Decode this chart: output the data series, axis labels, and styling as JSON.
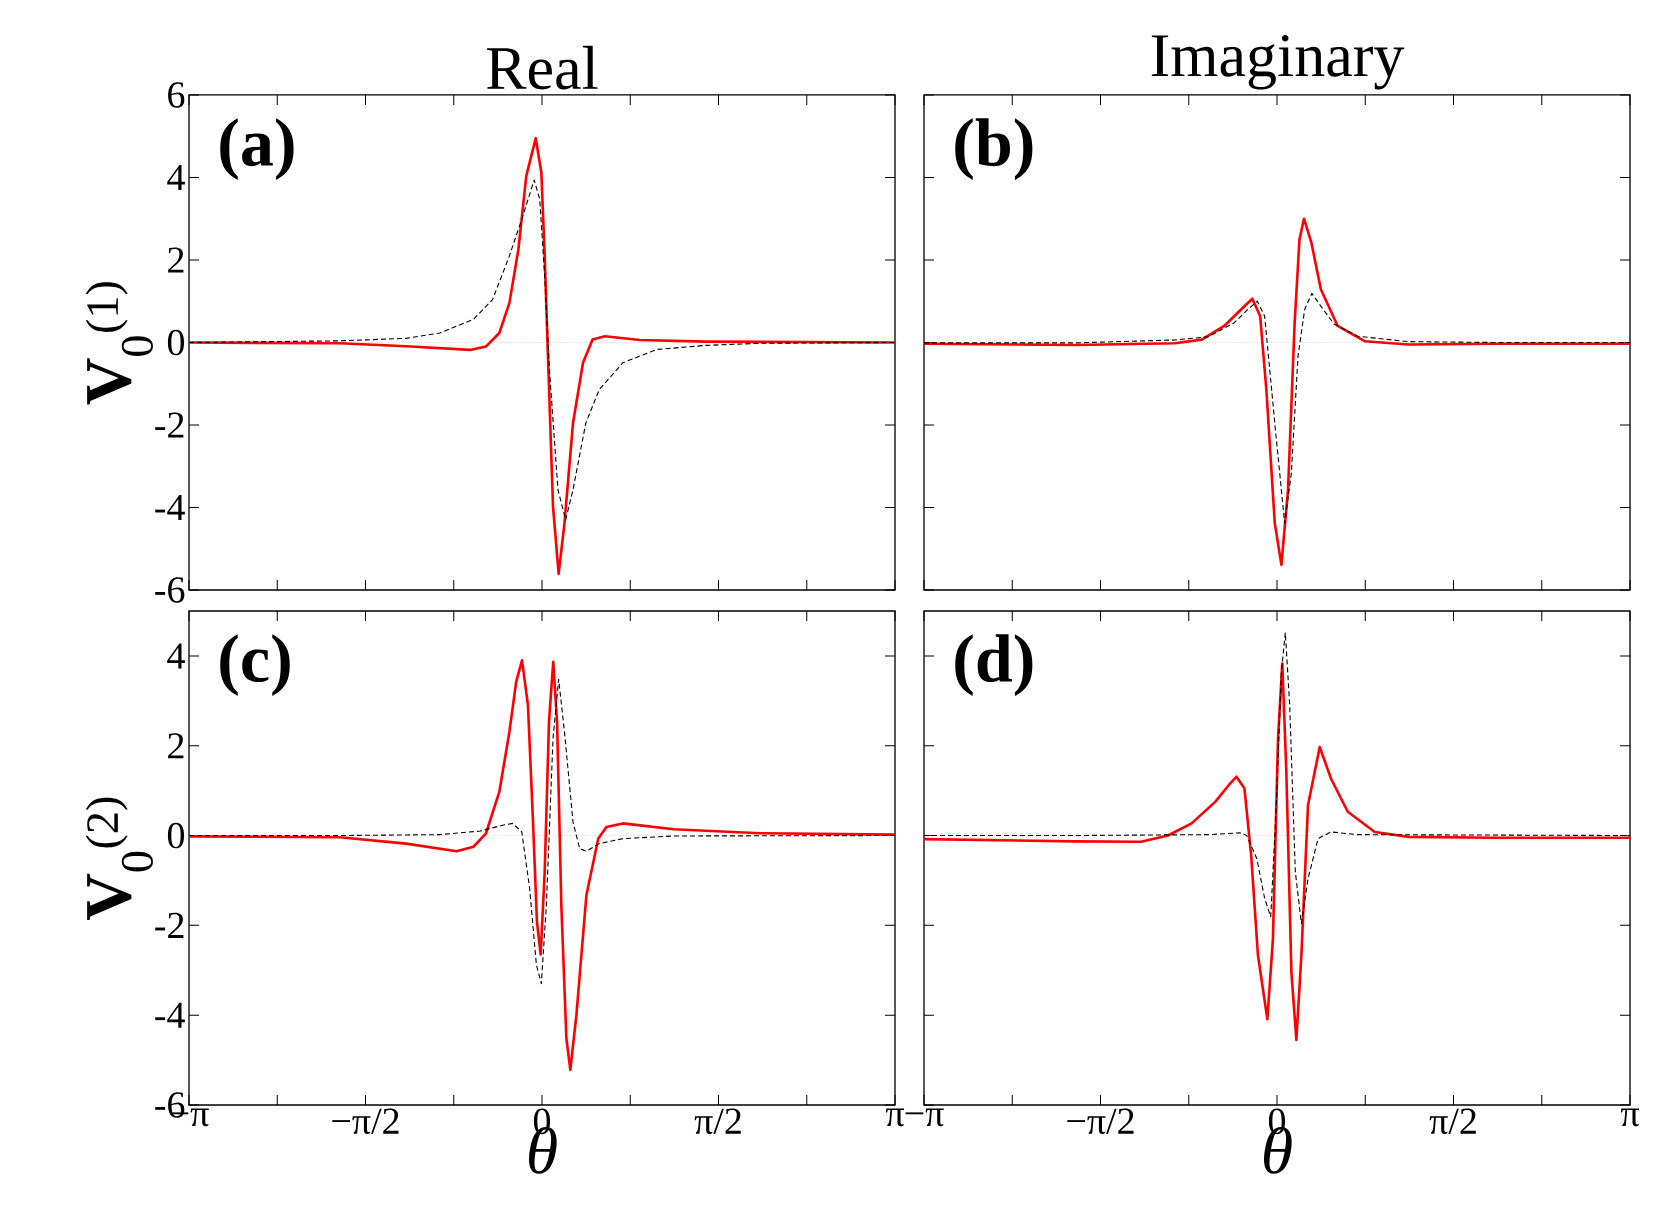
{
  "chart_data": [
    {
      "type": "line",
      "title": "Real",
      "ylabel": "**V**$_{0}$$^{(1)}$",
      "annotations": [
        "(a)"
      ],
      "xlim": [
        -3.1416,
        3.1416
      ],
      "ylim": [
        -6,
        6
      ],
      "tick_labels": "y",
      "xticks": [
        {
          "value": -3.1416,
          "label": null
        },
        {
          "value": -2.3562,
          "label": null
        },
        {
          "value": -1.5708,
          "label": null
        },
        {
          "value": -0.7854,
          "label": null
        },
        {
          "value": 0,
          "label": null
        },
        {
          "value": 0.7854,
          "label": null
        },
        {
          "value": 1.5708,
          "label": null
        },
        {
          "value": 2.3562,
          "label": null
        },
        {
          "value": 3.1416,
          "label": null
        }
      ],
      "yticks": [
        -6,
        -4,
        -2,
        0,
        2,
        4,
        6
      ],
      "ref_lines": [
        {
          "axis": "y",
          "value": 0,
          "color": "#c8c8c8",
          "line_style": "dotted"
        }
      ],
      "series": [
        {
          "color": "#ff0000",
          "line_style": "solid",
          "x": [
            -3.1416,
            -1.8,
            -1.21,
            -0.64,
            -0.5,
            -0.38,
            -0.29,
            -0.21,
            -0.14,
            -0.056,
            -0.006,
            0.024,
            0.053,
            0.098,
            0.148,
            0.2,
            0.276,
            0.365,
            0.45,
            0.56,
            0.87,
            1.46,
            3.1416
          ],
          "values": [
            0,
            -0.02,
            -0.09,
            -0.18,
            -0.1,
            0.23,
            0.96,
            2.26,
            4.04,
            4.95,
            4.12,
            2.1,
            -0.33,
            -3.98,
            -5.61,
            -4.38,
            -1.95,
            -0.49,
            0.07,
            0.15,
            0.06,
            0.02,
            0
          ]
        },
        {
          "color": "#000000",
          "line_style": "dashed",
          "x": [
            -3.1416,
            -1.8,
            -1.21,
            -0.91,
            -0.61,
            -0.44,
            -0.29,
            -0.17,
            -0.07,
            -0.02,
            0.024,
            0.068,
            0.142,
            0.21,
            0.276,
            0.39,
            0.51,
            0.72,
            1.02,
            1.46,
            1.94,
            3.1416
          ],
          "values": [
            0,
            0.04,
            0.1,
            0.23,
            0.56,
            1.04,
            2.1,
            3.07,
            3.94,
            3.47,
            1.61,
            -0.74,
            -3.57,
            -4.3,
            -3.57,
            -1.95,
            -1.14,
            -0.49,
            -0.17,
            -0.07,
            -0.02,
            0
          ]
        }
      ]
    },
    {
      "type": "line",
      "title": "Imaginary",
      "annotations": [
        "(b)"
      ],
      "xlim": [
        -3.1416,
        3.1416
      ],
      "ylim": [
        -6,
        6
      ],
      "tick_labels": false,
      "xticks": [
        {
          "value": -3.1416,
          "label": null
        },
        {
          "value": -2.3562,
          "label": null
        },
        {
          "value": -1.5708,
          "label": null
        },
        {
          "value": -0.7854,
          "label": null
        },
        {
          "value": 0,
          "label": null
        },
        {
          "value": 0.7854,
          "label": null
        },
        {
          "value": 1.5708,
          "label": null
        },
        {
          "value": 2.3562,
          "label": null
        },
        {
          "value": 3.1416,
          "label": null
        }
      ],
      "yticks": [
        {
          "value": -6,
          "label": null
        },
        {
          "value": -4,
          "label": null
        },
        {
          "value": -2,
          "label": null
        },
        {
          "value": 0,
          "label": null
        },
        {
          "value": 2,
          "label": null
        },
        {
          "value": 4,
          "label": null
        },
        {
          "value": 6,
          "label": null
        }
      ],
      "ref_lines": [
        {
          "axis": "y",
          "value": 0,
          "color": "#c8c8c8",
          "line_style": "dotted"
        }
      ],
      "series": [
        {
          "color": "#ff0000",
          "line_style": "solid",
          "x": [
            -3.1416,
            -1.8,
            -0.91,
            -0.67,
            -0.47,
            -0.32,
            -0.22,
            -0.15,
            -0.095,
            -0.02,
            0.039,
            0.098,
            0.157,
            0.2,
            0.24,
            0.306,
            0.39,
            0.54,
            0.78,
            1.17,
            1.94,
            3.1416
          ],
          "values": [
            -0.03,
            -0.06,
            -0.02,
            0.07,
            0.4,
            0.8,
            1.06,
            0.64,
            -1.14,
            -4.38,
            -5.39,
            -3.57,
            0.48,
            2.5,
            3.0,
            2.42,
            1.29,
            0.4,
            0.03,
            -0.05,
            -0.03,
            -0.03
          ]
        },
        {
          "color": "#000000",
          "line_style": "dashed",
          "x": [
            -3.1416,
            -1.8,
            -0.91,
            -0.61,
            -0.38,
            -0.26,
            -0.175,
            -0.11,
            -0.02,
            0.068,
            0.128,
            0.187,
            0.246,
            0.31,
            0.39,
            0.51,
            0.72,
            1.17,
            1.94,
            3.1416
          ],
          "values": [
            -0.01,
            -0.01,
            0.06,
            0.14,
            0.48,
            0.8,
            1.0,
            0.64,
            -1.95,
            -4.38,
            -3.16,
            -0.33,
            0.8,
            1.19,
            0.88,
            0.44,
            0.15,
            0.02,
            0,
            0
          ]
        }
      ]
    },
    {
      "type": "line",
      "ylabel": "**V**$_{0}$$^{(2)}$",
      "xlabel": "θ",
      "annotations": [
        "(c)"
      ],
      "xlim": [
        -3.1416,
        3.1416
      ],
      "ylim": [
        -6,
        5
      ],
      "xticks": [
        {
          "value": -3.1416,
          "label": "−π"
        },
        {
          "value": -2.3562,
          "label": null
        },
        {
          "value": -1.5708,
          "label": "−π/2"
        },
        {
          "value": -0.7854,
          "label": null
        },
        {
          "value": 0,
          "label": "0"
        },
        {
          "value": 0.7854,
          "label": null
        },
        {
          "value": 1.5708,
          "label": "π/2"
        },
        {
          "value": 2.3562,
          "label": null
        },
        {
          "value": 3.1416,
          "label": "π"
        }
      ],
      "yticks": [
        -6,
        -4,
        -2,
        0,
        2,
        4
      ],
      "ref_lines": [
        {
          "axis": "y",
          "value": 0,
          "color": "#c8c8c8",
          "line_style": "dotted"
        }
      ],
      "series": [
        {
          "color": "#ff0000",
          "line_style": "solid",
          "x": [
            -3.1416,
            -1.8,
            -1.21,
            -0.76,
            -0.61,
            -0.5,
            -0.38,
            -0.29,
            -0.23,
            -0.178,
            -0.125,
            -0.08,
            -0.045,
            -0.012,
            0.024,
            0.062,
            0.1,
            0.134,
            0.172,
            0.217,
            0.252,
            0.306,
            0.395,
            0.5,
            0.573,
            0.72,
            1.17,
            1.94,
            3.1416
          ],
          "values": [
            -0.02,
            -0.04,
            -0.18,
            -0.35,
            -0.25,
            0.04,
            0.97,
            2.31,
            3.42,
            3.9,
            2.9,
            0.3,
            -1.92,
            -2.65,
            -0.81,
            2.53,
            3.87,
            2.53,
            -1.55,
            -4.52,
            -5.22,
            -4.0,
            -1.33,
            -0.07,
            0.19,
            0.27,
            0.14,
            0.05,
            0.02
          ]
        },
        {
          "color": "#000000",
          "line_style": "dashed",
          "x": [
            -3.1416,
            -1.8,
            -0.91,
            -0.55,
            -0.35,
            -0.26,
            -0.18,
            -0.11,
            -0.05,
            -0.006,
            0.039,
            0.098,
            0.148,
            0.2,
            0.276,
            0.335,
            0.395,
            0.51,
            0.72,
            1.17,
            3.1416
          ],
          "values": [
            0,
            0,
            0.02,
            0.1,
            0.23,
            0.27,
            0.08,
            -1.18,
            -2.88,
            -3.3,
            -1.55,
            2.16,
            3.48,
            2.31,
            0.3,
            -0.29,
            -0.35,
            -0.18,
            -0.07,
            -0.01,
            0
          ]
        }
      ]
    },
    {
      "type": "line",
      "xlabel": "θ",
      "annotations": [
        "(d)"
      ],
      "xlim": [
        -3.1416,
        3.1416
      ],
      "ylim": [
        -6,
        5
      ],
      "tick_labels": "x",
      "xticks": [
        {
          "value": -3.1416,
          "label": "−π"
        },
        {
          "value": -2.3562,
          "label": null
        },
        {
          "value": -1.5708,
          "label": "−π/2"
        },
        {
          "value": -0.7854,
          "label": null
        },
        {
          "value": 0,
          "label": "0"
        },
        {
          "value": 0.7854,
          "label": null
        },
        {
          "value": 1.5708,
          "label": "π/2"
        },
        {
          "value": 2.3562,
          "label": null
        },
        {
          "value": 3.1416,
          "label": "π"
        }
      ],
      "yticks": [
        {
          "value": -6,
          "label": null
        },
        {
          "value": -4,
          "label": null
        },
        {
          "value": -2,
          "label": null
        },
        {
          "value": 0,
          "label": null
        },
        {
          "value": 2,
          "label": null
        },
        {
          "value": 4,
          "label": null
        }
      ],
      "ref_lines": [
        {
          "axis": "y",
          "value": 0,
          "color": "#c8c8c8",
          "line_style": "dotted"
        }
      ],
      "series": [
        {
          "color": "#ff0000",
          "line_style": "solid",
          "x": [
            -3.1416,
            -1.8,
            -1.21,
            -0.97,
            -0.76,
            -0.55,
            -0.43,
            -0.36,
            -0.29,
            -0.23,
            -0.17,
            -0.086,
            -0.036,
            0.009,
            0.047,
            0.083,
            0.128,
            0.172,
            0.217,
            0.276,
            0.38,
            0.48,
            0.63,
            0.87,
            1.17,
            1.94,
            3.1416
          ],
          "values": [
            -0.08,
            -0.13,
            -0.14,
            0,
            0.27,
            0.75,
            1.12,
            1.31,
            1.05,
            -0.44,
            -2.66,
            -4.09,
            -2.29,
            2.16,
            3.83,
            1.42,
            -3.04,
            -4.55,
            -2.66,
            0.68,
            1.97,
            1.27,
            0.53,
            0.08,
            -0.03,
            -0.05,
            -0.05
          ]
        },
        {
          "color": "#000000",
          "line_style": "dashed",
          "x": [
            -3.1416,
            -1.8,
            -0.61,
            -0.33,
            -0.27,
            -0.18,
            -0.11,
            -0.056,
            -0.006,
            0.039,
            0.074,
            0.113,
            0.163,
            0.217,
            0.276,
            0.365,
            0.48,
            0.72,
            3.1416
          ],
          "values": [
            0,
            0,
            0.02,
            0.06,
            0,
            -0.51,
            -1.4,
            -1.81,
            0.68,
            3.65,
            4.52,
            2.9,
            -0.81,
            -1.96,
            -0.96,
            -0.07,
            0.08,
            0.02,
            0
          ]
        }
      ]
    }
  ]
}
